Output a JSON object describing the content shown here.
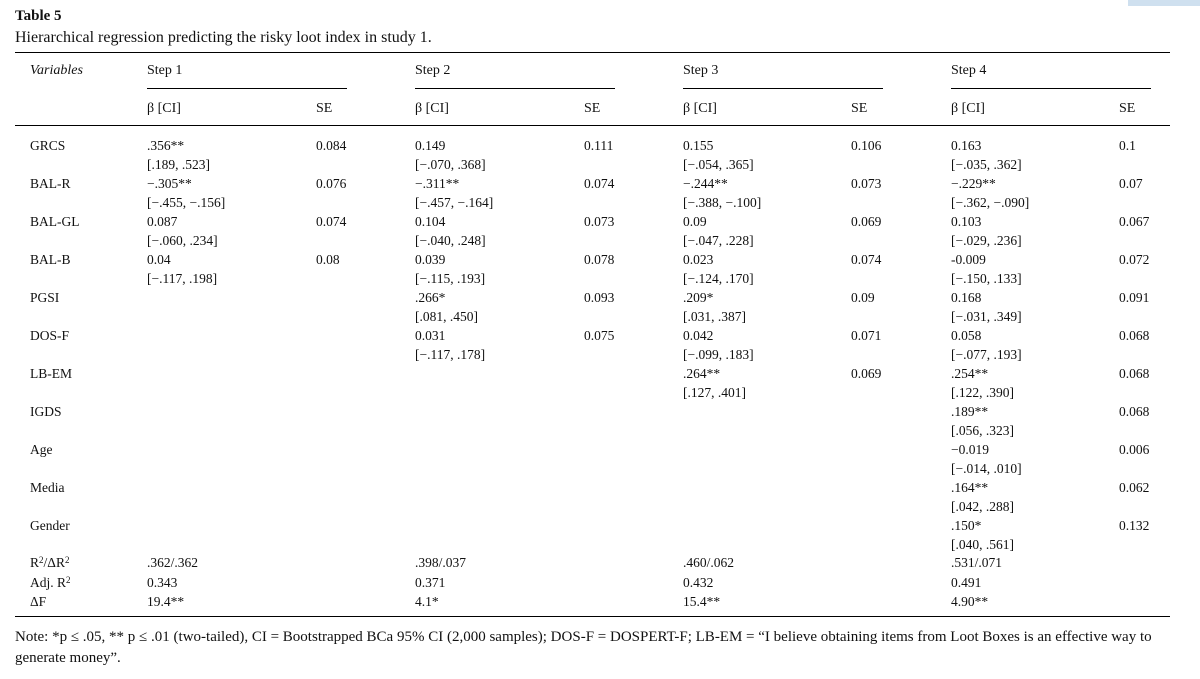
{
  "table": {
    "label": "Table 5",
    "caption": "Hierarchical regression predicting the risky loot index in study 1.",
    "var_header": "Variables",
    "steps": [
      "Step 1",
      "Step 2",
      "Step 3",
      "Step 4"
    ],
    "beta_header": "β [CI]",
    "se_header": "SE",
    "rows": [
      {
        "name": "GRCS",
        "cells": [
          [
            ".356**",
            "[.189, .523]",
            "0.084"
          ],
          [
            "0.149",
            "[−.070, .368]",
            "0.111"
          ],
          [
            "0.155",
            "[−.054, .365]",
            "0.106"
          ],
          [
            "0.163",
            "[−.035, .362]",
            "0.1"
          ]
        ]
      },
      {
        "name": "BAL-R",
        "cells": [
          [
            "−.305**",
            "[−.455, −.156]",
            "0.076"
          ],
          [
            "−.311**",
            "[−.457, −.164]",
            "0.074"
          ],
          [
            "−.244**",
            "[−.388, −.100]",
            "0.073"
          ],
          [
            "−.229**",
            "[−.362, −.090]",
            "0.07"
          ]
        ]
      },
      {
        "name": "BAL-GL",
        "cells": [
          [
            "0.087",
            "[−.060, .234]",
            "0.074"
          ],
          [
            "0.104",
            "[−.040, .248]",
            "0.073"
          ],
          [
            "0.09",
            "[−.047, .228]",
            "0.069"
          ],
          [
            "0.103",
            "[−.029, .236]",
            "0.067"
          ]
        ]
      },
      {
        "name": "BAL-B",
        "cells": [
          [
            "0.04",
            "[−.117, .198]",
            "0.08"
          ],
          [
            "0.039",
            "[−.115, .193]",
            "0.078"
          ],
          [
            "0.023",
            "[−.124, .170]",
            "0.074"
          ],
          [
            "-0.009",
            "[−.150, .133]",
            "0.072"
          ]
        ]
      },
      {
        "name": "PGSI",
        "cells": [
          [
            "",
            "",
            ""
          ],
          [
            ".266*",
            "[.081, .450]",
            "0.093"
          ],
          [
            ".209*",
            "[.031, .387]",
            "0.09"
          ],
          [
            "0.168",
            "[−.031, .349]",
            "0.091"
          ]
        ]
      },
      {
        "name": "DOS-F",
        "cells": [
          [
            "",
            "",
            ""
          ],
          [
            "0.031",
            "[−.117, .178]",
            "0.075"
          ],
          [
            "0.042",
            "[−.099, .183]",
            "0.071"
          ],
          [
            "0.058",
            "[−.077, .193]",
            "0.068"
          ]
        ]
      },
      {
        "name": "LB-EM",
        "cells": [
          [
            "",
            "",
            ""
          ],
          [
            "",
            "",
            ""
          ],
          [
            ".264**",
            "[.127, .401]",
            "0.069"
          ],
          [
            ".254**",
            "[.122, .390]",
            "0.068"
          ]
        ]
      },
      {
        "name": "IGDS",
        "cells": [
          [
            "",
            "",
            ""
          ],
          [
            "",
            "",
            ""
          ],
          [
            "",
            "",
            ""
          ],
          [
            ".189**",
            "[.056, .323]",
            "0.068"
          ]
        ]
      },
      {
        "name": "Age",
        "cells": [
          [
            "",
            "",
            ""
          ],
          [
            "",
            "",
            ""
          ],
          [
            "",
            "",
            ""
          ],
          [
            "−0.019",
            "[−.014, .010]",
            "0.006"
          ]
        ]
      },
      {
        "name": "Media",
        "cells": [
          [
            "",
            "",
            ""
          ],
          [
            "",
            "",
            ""
          ],
          [
            "",
            "",
            ""
          ],
          [
            ".164**",
            "[.042, .288]",
            "0.062"
          ]
        ]
      },
      {
        "name": "Gender",
        "cells": [
          [
            "",
            "",
            ""
          ],
          [
            "",
            "",
            ""
          ],
          [
            "",
            "",
            ""
          ],
          [
            ".150*",
            "[.040, .561]",
            "0.132"
          ]
        ]
      }
    ],
    "stats": [
      {
        "base": "R",
        "sup": "2",
        "mid": "/ΔR",
        "sup2": "2",
        "values": [
          ".362/.362",
          ".398/.037",
          ".460/.062",
          ".531/.071"
        ]
      },
      {
        "base": "Adj. R",
        "sup": "2",
        "mid": "",
        "sup2": "",
        "values": [
          "0.343",
          "0.371",
          "0.432",
          "0.491"
        ]
      },
      {
        "base": "ΔF",
        "sup": "",
        "mid": "",
        "sup2": "",
        "values": [
          "19.4**",
          "4.1*",
          "15.4**",
          "4.90**"
        ]
      }
    ],
    "note": "Note: *p ≤ .05, ** p ≤ .01 (two-tailed), CI = Bootstrapped BCa 95% CI (2,000 samples); DOS-F = DOSPERT-F; LB-EM = “I believe obtaining items from Loot Boxes is an effective way to generate money”."
  }
}
